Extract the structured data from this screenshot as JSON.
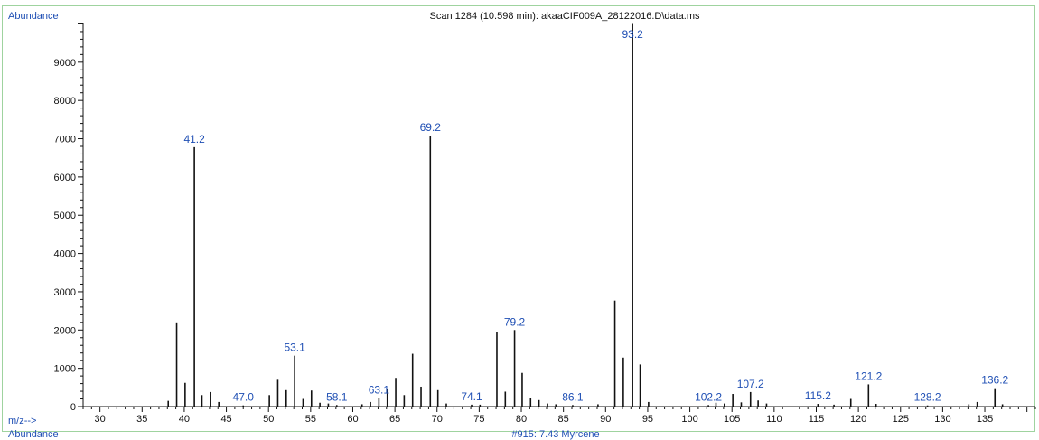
{
  "header": {
    "left_label": "Abundance",
    "title": "Scan 1284 (10.598 min): akaaCIF009A_28122016.D\\data.ms"
  },
  "footer": {
    "axis_label": "m/z-->",
    "left_label": "Abundance",
    "library_hit": "#915: 7.43 Myrcene"
  },
  "colors": {
    "frame": "#9fd39f",
    "label": "#1f4fb4",
    "bars": "#111111"
  },
  "chart_data": {
    "type": "bar",
    "title": "Scan 1284 (10.598 min): akaaCIF009A_28122016.D\\data.ms",
    "ylabel": "Abundance",
    "xlabel": "m/z-->",
    "xlim": [
      28,
      141
    ],
    "ylim": [
      0,
      10200
    ],
    "x_ticks": [
      30,
      35,
      40,
      45,
      50,
      55,
      60,
      65,
      70,
      75,
      80,
      85,
      90,
      95,
      100,
      105,
      110,
      115,
      120,
      125,
      130,
      135
    ],
    "y_ticks": [
      0,
      1000,
      2000,
      3000,
      4000,
      5000,
      6000,
      7000,
      8000,
      9000
    ],
    "peaks": [
      {
        "mz": 38.1,
        "abundance": 150
      },
      {
        "mz": 39.1,
        "abundance": 2200
      },
      {
        "mz": 40.1,
        "abundance": 620
      },
      {
        "mz": 41.2,
        "abundance": 6780
      },
      {
        "mz": 42.1,
        "abundance": 300
      },
      {
        "mz": 43.1,
        "abundance": 380
      },
      {
        "mz": 44.1,
        "abundance": 120
      },
      {
        "mz": 47.0,
        "abundance": 30
      },
      {
        "mz": 50.1,
        "abundance": 300
      },
      {
        "mz": 51.1,
        "abundance": 700
      },
      {
        "mz": 52.1,
        "abundance": 430
      },
      {
        "mz": 53.1,
        "abundance": 1330
      },
      {
        "mz": 54.1,
        "abundance": 200
      },
      {
        "mz": 55.1,
        "abundance": 420
      },
      {
        "mz": 56.1,
        "abundance": 100
      },
      {
        "mz": 57.1,
        "abundance": 80
      },
      {
        "mz": 58.1,
        "abundance": 40
      },
      {
        "mz": 61.1,
        "abundance": 60
      },
      {
        "mz": 62.1,
        "abundance": 120
      },
      {
        "mz": 63.1,
        "abundance": 220
      },
      {
        "mz": 64.1,
        "abundance": 450
      },
      {
        "mz": 65.1,
        "abundance": 750
      },
      {
        "mz": 66.1,
        "abundance": 300
      },
      {
        "mz": 67.1,
        "abundance": 1380
      },
      {
        "mz": 68.1,
        "abundance": 520
      },
      {
        "mz": 69.2,
        "abundance": 7080
      },
      {
        "mz": 70.1,
        "abundance": 430
      },
      {
        "mz": 71.1,
        "abundance": 80
      },
      {
        "mz": 74.1,
        "abundance": 50
      },
      {
        "mz": 75.1,
        "abundance": 50
      },
      {
        "mz": 77.1,
        "abundance": 1960
      },
      {
        "mz": 78.1,
        "abundance": 390
      },
      {
        "mz": 79.2,
        "abundance": 2000
      },
      {
        "mz": 80.1,
        "abundance": 880
      },
      {
        "mz": 81.1,
        "abundance": 230
      },
      {
        "mz": 82.1,
        "abundance": 170
      },
      {
        "mz": 83.1,
        "abundance": 80
      },
      {
        "mz": 84.1,
        "abundance": 60
      },
      {
        "mz": 86.1,
        "abundance": 40
      },
      {
        "mz": 89.1,
        "abundance": 60
      },
      {
        "mz": 91.1,
        "abundance": 2770
      },
      {
        "mz": 92.1,
        "abundance": 1280
      },
      {
        "mz": 93.2,
        "abundance": 10000
      },
      {
        "mz": 94.1,
        "abundance": 1100
      },
      {
        "mz": 95.1,
        "abundance": 120
      },
      {
        "mz": 102.2,
        "abundance": 40
      },
      {
        "mz": 103.1,
        "abundance": 100
      },
      {
        "mz": 104.1,
        "abundance": 80
      },
      {
        "mz": 105.1,
        "abundance": 330
      },
      {
        "mz": 106.1,
        "abundance": 110
      },
      {
        "mz": 107.2,
        "abundance": 380
      },
      {
        "mz": 108.1,
        "abundance": 160
      },
      {
        "mz": 109.1,
        "abundance": 80
      },
      {
        "mz": 115.2,
        "abundance": 70
      },
      {
        "mz": 117.1,
        "abundance": 50
      },
      {
        "mz": 119.1,
        "abundance": 200
      },
      {
        "mz": 121.2,
        "abundance": 580
      },
      {
        "mz": 122.1,
        "abundance": 70
      },
      {
        "mz": 128.2,
        "abundance": 30
      },
      {
        "mz": 133.1,
        "abundance": 60
      },
      {
        "mz": 134.1,
        "abundance": 120
      },
      {
        "mz": 136.2,
        "abundance": 480
      },
      {
        "mz": 137.1,
        "abundance": 60
      }
    ],
    "peak_labels": [
      {
        "mz": 41.2,
        "text": "41.2"
      },
      {
        "mz": 47.0,
        "text": "47.0"
      },
      {
        "mz": 53.1,
        "text": "53.1"
      },
      {
        "mz": 58.1,
        "text": "58.1"
      },
      {
        "mz": 63.1,
        "text": "63.1"
      },
      {
        "mz": 69.2,
        "text": "69.2"
      },
      {
        "mz": 74.1,
        "text": "74.1"
      },
      {
        "mz": 79.2,
        "text": "79.2"
      },
      {
        "mz": 86.1,
        "text": "86.1"
      },
      {
        "mz": 93.2,
        "text": "93.2"
      },
      {
        "mz": 102.2,
        "text": "102.2"
      },
      {
        "mz": 107.2,
        "text": "107.2"
      },
      {
        "mz": 115.2,
        "text": "115.2"
      },
      {
        "mz": 121.2,
        "text": "121.2"
      },
      {
        "mz": 128.2,
        "text": "128.2"
      },
      {
        "mz": 136.2,
        "text": "136.2"
      }
    ]
  }
}
